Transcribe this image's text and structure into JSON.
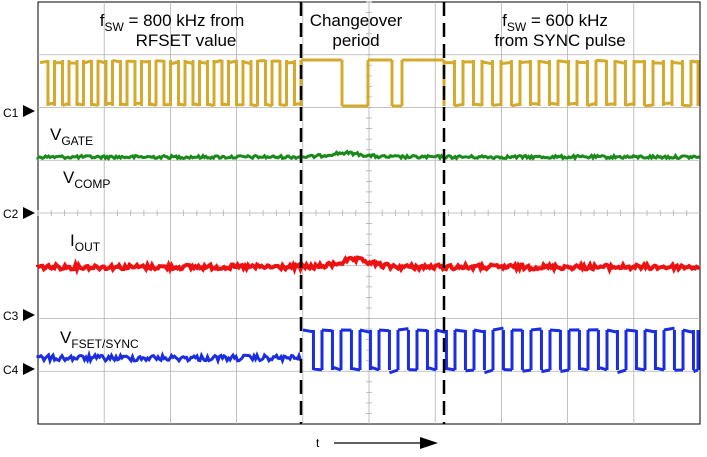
{
  "chart_data": {
    "type": "line",
    "description_text": {
      "region1_line1_main": "f",
      "region1_line1_sub": "SW",
      "region1_line1_rest": " = 800 kHz from",
      "region1_line2": "RFSET value",
      "region2_line1": "Changeover",
      "region2_line2": "period",
      "region3_line1_main": "f",
      "region3_line1_sub": "SW",
      "region3_line1_rest": " = 600 kHz",
      "region3_line2": "from SYNC pulse"
    },
    "channel_markers": [
      "C1",
      "C2",
      "C3",
      "C4"
    ],
    "series": [
      {
        "name": "C1",
        "signal": "switch node square wave",
        "before_changeover_khz": 800,
        "after_changeover_khz": 600,
        "color": "#d4aa2c"
      },
      {
        "name": "VGATE",
        "label_main": "V",
        "label_sub": "GATE",
        "signal": "flat with small bump during changeover",
        "color": "#1a8a1a"
      },
      {
        "name": "VCOMP",
        "label_main": "V",
        "label_sub": "COMP",
        "signal": "trace on C2 reference",
        "color": "#000000"
      },
      {
        "name": "IOUT",
        "label_main": "I",
        "label_sub": "OUT",
        "signal": "flat with small bump during changeover",
        "color": "#ee1111"
      },
      {
        "name": "VFSET/SYNC",
        "label_main": "V",
        "label_sub": "FSET/SYNC",
        "signal": "flat, then 600 kHz sync pulses",
        "color": "#1a2ee0"
      }
    ],
    "x_axis_label": "t",
    "grid": true,
    "markers_vertical": [
      "changeover start",
      "changeover end"
    ]
  },
  "colors": {
    "c1": "#d4aa2c",
    "vgate": "#1a8a1a",
    "iout": "#ee1111",
    "vfset": "#1a2ee0",
    "grid": "#b0b0b0"
  }
}
